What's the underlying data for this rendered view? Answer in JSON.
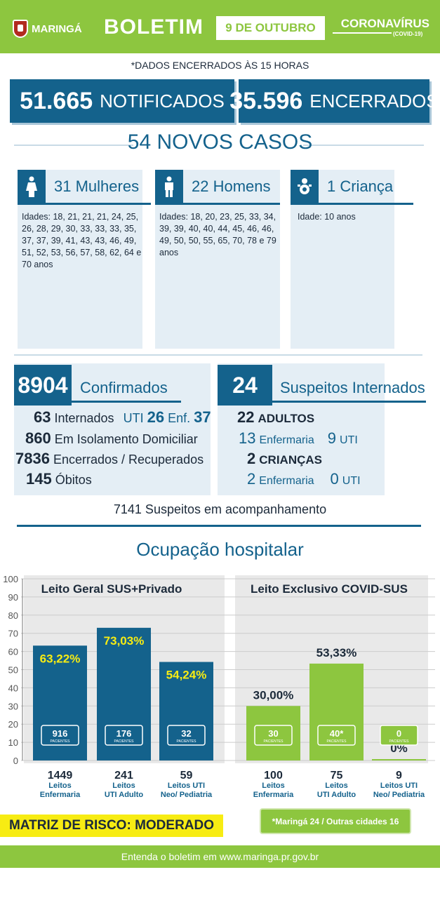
{
  "header": {
    "logo": "MARINGÁ",
    "title": "BOLETIM",
    "date": "9 DE OUTUBRO",
    "corona": "CORONAVÍRUS",
    "corona_sub": "(COVID-19)"
  },
  "closed_note": "*DADOS ENCERRADOS ÀS 15 HORAS",
  "notificados": {
    "value": "51.665",
    "label": "NOTIFICADOS"
  },
  "encerrados": {
    "value": "35.596",
    "label": "ENCERRADOS"
  },
  "novos_casos": "54 NOVOS CASOS",
  "groups": [
    {
      "title": "31 Mulheres",
      "icon": "woman-icon",
      "text": "Idades: 18, 21, 21, 21, 24, 25, 26, 28, 29, 30, 33, 33, 33, 35, 37, 37, 39, 41, 43, 43, 46, 49, 51, 52, 53, 56, 57, 58, 62, 64 e 70 anos"
    },
    {
      "title": "22 Homens",
      "icon": "man-icon",
      "text": "Idades: 18, 20, 23, 25, 33, 34, 39, 39, 40, 40, 44, 45, 46, 46, 49, 50, 50, 55, 65, 70, 78 e 79 anos"
    },
    {
      "title": "1 Criança",
      "icon": "baby-icon",
      "text": "Idade: 10 anos"
    }
  ],
  "confirmados": {
    "value": "8904",
    "label": "Confirmados",
    "internados_num": "63",
    "internados_label": "Internados",
    "uti_label": "UTI",
    "uti_num": "26",
    "enf_label": "Enf.",
    "enf_num": "37",
    "isolamento_num": "860",
    "isolamento_label": "Em Isolamento Domiciliar",
    "recuperados_num": "7836",
    "recuperados_label": "Encerrados / Recuperados",
    "obitos_num": "145",
    "obitos_label": "Óbitos"
  },
  "suspeitos": {
    "value": "24",
    "label": "Suspeitos Internados",
    "adultos_num": "22",
    "adultos_label": "ADULTOS",
    "adultos_enf_num": "13",
    "enf_label": "Enfermaria",
    "adultos_uti_num": "9",
    "uti_label": "UTI",
    "criancas_num": "2",
    "criancas_label": "CRIANÇAS",
    "criancas_enf_num": "2",
    "criancas_uti_num": "0"
  },
  "acompanhamento": "7141 Suspeitos em acompanhamento",
  "ocupacao_title": "Ocupação hospitalar",
  "chart_data": {
    "type": "bar",
    "ylim": [
      0,
      100
    ],
    "yticks": [
      "0",
      "10",
      "20",
      "30",
      "40",
      "50",
      "60",
      "70",
      "80",
      "90",
      "100"
    ],
    "groups": [
      {
        "title": "Leito Geral SUS+Privado",
        "color": "#14628c",
        "bars": [
          {
            "value": 63.22,
            "label": "63,22%",
            "patients": "916",
            "beds": "1449",
            "cat1": "Leitos",
            "cat2": "Enfermaria"
          },
          {
            "value": 73.03,
            "label": "73,03%",
            "patients": "176",
            "beds": "241",
            "cat1": "Leitos",
            "cat2": "UTI Adulto"
          },
          {
            "value": 54.24,
            "label": "54,24%",
            "patients": "32",
            "beds": "59",
            "cat1": "Leitos UTI",
            "cat2": "Neo/ Pediatria"
          }
        ]
      },
      {
        "title": "Leito Exclusivo COVID-SUS",
        "color": "#8dc63f",
        "bars": [
          {
            "value": 30.0,
            "label": "30,00%",
            "patients": "30",
            "beds": "100",
            "cat1": "Leitos",
            "cat2": "Enfermaria"
          },
          {
            "value": 53.33,
            "label": "53,33%",
            "patients": "40*",
            "beds": "75",
            "cat1": "Leitos",
            "cat2": "UTI Adulto"
          },
          {
            "value": 0,
            "label": "0%",
            "patients": "0",
            "beds": "9",
            "cat1": "Leitos UTI",
            "cat2": "Neo/ Pediatria"
          }
        ]
      }
    ],
    "patients_label": "PACIENTES"
  },
  "matriz": "MATRIZ DE RISCO: MODERADO",
  "note": "*Maringá 24 / Outras cidades 16",
  "footer": "Entenda o boletim em www.maringa.pr.gov.br"
}
